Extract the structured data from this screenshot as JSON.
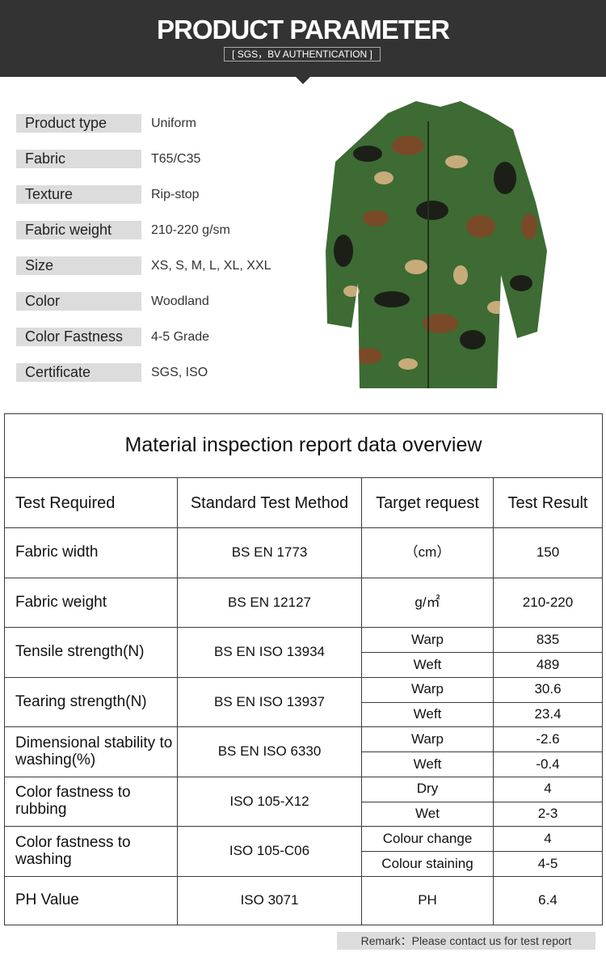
{
  "header": {
    "title": "PRODUCT PARAMETER",
    "subtitle": "[ SGS，BV AUTHENTICATION ]"
  },
  "parameters": [
    {
      "label": "Product type",
      "value": "Uniform"
    },
    {
      "label": "Fabric",
      "value": "T65/C35"
    },
    {
      "label": "Texture",
      "value": "Rip-stop"
    },
    {
      "label": "Fabric weight",
      "value": "210-220 g/sm"
    },
    {
      "label": "Size",
      "value": "XS, S, M, L, XL, XXL"
    },
    {
      "label": "Color",
      "value": "Woodland"
    },
    {
      "label": "Color Fastness",
      "value": "4-5 Grade"
    },
    {
      "label": "Certificate",
      "value": "SGS, ISO"
    }
  ],
  "table": {
    "title": "Material inspection report data overview",
    "columns": [
      "Test Required",
      "Standard Test Method",
      "Target request",
      "Test Result"
    ],
    "rows": [
      {
        "item": "Fabric width",
        "method": "BS EN 1773",
        "targets": [
          "（cm）"
        ],
        "results": [
          "150"
        ]
      },
      {
        "item": "Fabric weight",
        "method": "BS EN 12127",
        "targets": [
          "g/㎡"
        ],
        "results": [
          "210-220"
        ]
      },
      {
        "item": "Tensile strength(N)",
        "method": "BS EN ISO 13934",
        "targets": [
          "Warp",
          "Weft"
        ],
        "results": [
          "835",
          "489"
        ]
      },
      {
        "item": "Tearing strength(N)",
        "method": "BS EN ISO 13937",
        "targets": [
          "Warp",
          "Weft"
        ],
        "results": [
          "30.6",
          "23.4"
        ]
      },
      {
        "item": "Dimensional stability to washing(%)",
        "method": "BS EN ISO 6330",
        "targets": [
          "Warp",
          "Weft"
        ],
        "results": [
          "-2.6",
          "-0.4"
        ]
      },
      {
        "item": "Color fastness to rubbing",
        "method": "ISO 105-X12",
        "targets": [
          "Dry",
          "Wet"
        ],
        "results": [
          "4",
          "2-3"
        ]
      },
      {
        "item": "Color fastness to washing",
        "method": "ISO 105-C06",
        "targets": [
          "Colour change",
          "Colour staining"
        ],
        "results": [
          "4",
          "4-5"
        ]
      },
      {
        "item": "PH Value",
        "method": "ISO 3071",
        "targets": [
          "PH"
        ],
        "results": [
          "6.4"
        ]
      }
    ]
  },
  "remark": "Remark：Please contact us for test report"
}
